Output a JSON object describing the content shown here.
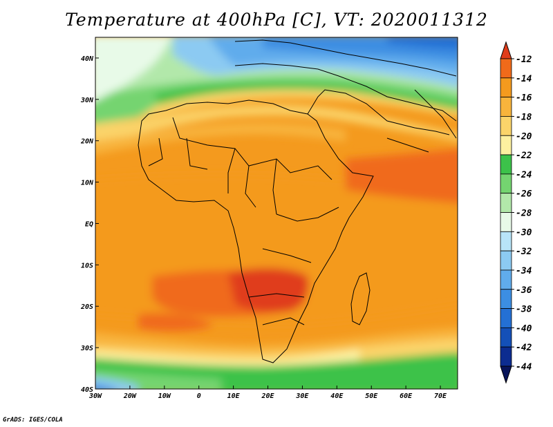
{
  "title": "Temperature at 400hPa [C], VT: 2020011312",
  "credit": "GrADS: IGES/COLA",
  "map": {
    "region": "Africa",
    "lon_labels": [
      "30W",
      "20W",
      "10W",
      "0",
      "10E",
      "20E",
      "30E",
      "40E",
      "50E",
      "60E",
      "70E"
    ],
    "lat_labels": [
      "40N",
      "30N",
      "20N",
      "10N",
      "EQ",
      "10S",
      "20S",
      "30S",
      "40S"
    ]
  },
  "colorbar": {
    "labels": [
      "-12",
      "-14",
      "-16",
      "-18",
      "-20",
      "-22",
      "-24",
      "-26",
      "-28",
      "-30",
      "-32",
      "-34",
      "-36",
      "-38",
      "-40",
      "-42",
      "-44"
    ],
    "colors": [
      "#e03c1a",
      "#f06a1a",
      "#f49a1e",
      "#f8b43c",
      "#fbd46a",
      "#fdf0a0",
      "#3cc24a",
      "#74d470",
      "#b2e8aa",
      "#e8fae8",
      "#b8e4f8",
      "#8ccaf2",
      "#60acec",
      "#3c8ee2",
      "#2470d4",
      "#1450b8",
      "#0c2c90",
      "#08145a"
    ]
  }
}
